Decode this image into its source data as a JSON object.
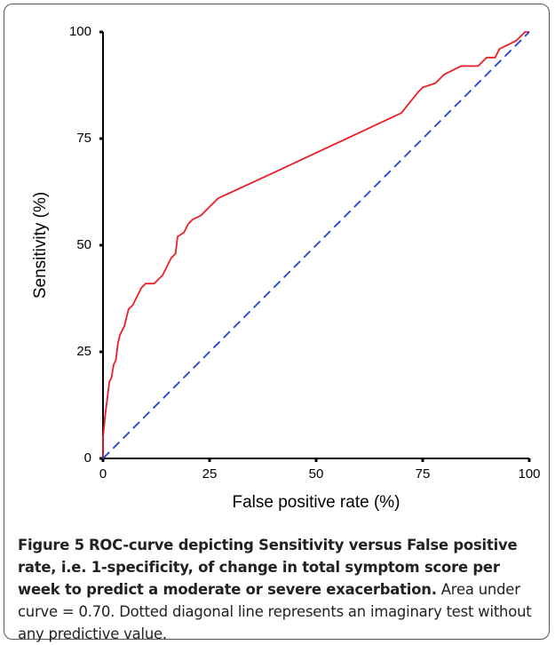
{
  "chart_data": {
    "type": "line",
    "xlabel": "False positive rate (%)",
    "ylabel": "Sensitivity (%)",
    "xlim": [
      0,
      100
    ],
    "ylim": [
      0,
      100
    ],
    "xticks": [
      0,
      25,
      50,
      75,
      100
    ],
    "yticks": [
      0,
      25,
      50,
      75,
      100
    ],
    "series": [
      {
        "color": "#ee1c25",
        "style": "solid",
        "x": [
          0,
          0,
          0.5,
          1,
          1.5,
          2,
          2.5,
          3,
          3.5,
          4,
          5,
          5.5,
          6,
          7,
          8,
          9,
          10,
          12,
          13,
          14,
          15,
          16,
          17,
          17.5,
          19,
          20,
          21,
          23,
          24,
          25,
          27,
          40,
          55,
          70,
          74,
          75,
          78,
          80,
          82,
          84,
          88,
          90,
          92,
          93,
          95,
          97,
          99,
          100
        ],
        "values": [
          0,
          5,
          10,
          14,
          18,
          19,
          22,
          23,
          27,
          29,
          31,
          33,
          35,
          36,
          38,
          40,
          41,
          41,
          42,
          43,
          45,
          47,
          48,
          52,
          53,
          55,
          56,
          57,
          58,
          59,
          61,
          67,
          74,
          81,
          86,
          87,
          88,
          90,
          91,
          92,
          92,
          94,
          94,
          96,
          97,
          98,
          100,
          100
        ]
      },
      {
        "color": "#1f3fd8",
        "style": "dashed",
        "x": [
          0,
          100
        ],
        "values": [
          0,
          100
        ]
      }
    ]
  },
  "caption": {
    "label": "Figure 5",
    "title": "ROC-curve depicting Sensitivity versus False positive rate, i.e. 1-specificity, of change in total symptom score per week to predict a moderate or severe exacerbation.",
    "text": "Area under curve = 0.70. Dotted diagonal line represents an imaginary test without any predictive value."
  }
}
